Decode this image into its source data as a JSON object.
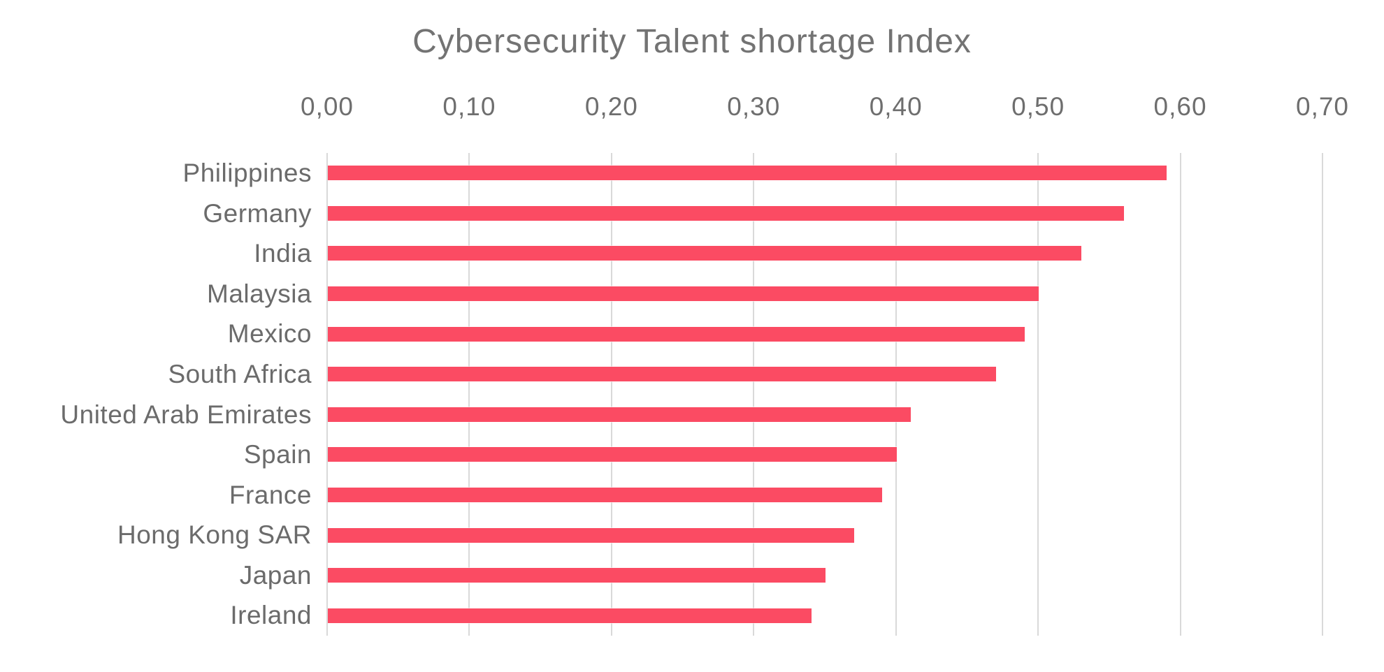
{
  "chart_data": {
    "type": "bar",
    "orientation": "horizontal",
    "title": "Cybersecurity Talent shortage Index",
    "categories": [
      "Philippines",
      "Germany",
      "India",
      "Malaysia",
      "Mexico",
      "South Africa",
      "United Arab Emirates",
      "Spain",
      "France",
      "Hong Kong SAR",
      "Japan",
      "Ireland"
    ],
    "values": [
      0.59,
      0.56,
      0.53,
      0.5,
      0.49,
      0.47,
      0.41,
      0.4,
      0.39,
      0.37,
      0.35,
      0.34
    ],
    "xlabel": "",
    "ylabel": "",
    "xlim": [
      0,
      0.7
    ],
    "x_tick_values": [
      0.0,
      0.1,
      0.2,
      0.3,
      0.4,
      0.5,
      0.6,
      0.7
    ],
    "x_tick_labels": [
      "0,00",
      "0,10",
      "0,20",
      "0,30",
      "0,40",
      "0,50",
      "0,60",
      "0,70"
    ],
    "axis_position": "top",
    "decimal_separator": ",",
    "grid": "vertical-on",
    "legend_position": "none",
    "colors": {
      "bar": "#fb4b63",
      "title_text": "#737373",
      "axis_text": "#6e6e6e",
      "gridline": "#d9d9d9"
    }
  }
}
